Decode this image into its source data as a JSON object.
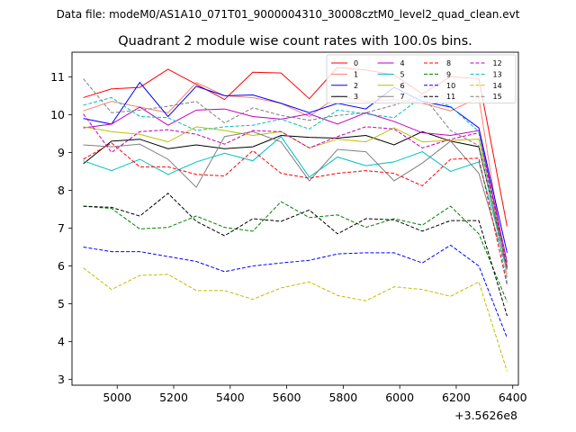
{
  "figure": {
    "suptitle": "Data file: modeM0/AS1A10_071T01_9000004310_30008cztM0_level2_quad_clean.evt",
    "title": "Quadrant 2 module wise count rates with 100.0s bins.",
    "offset_label": "+3.5626e8"
  },
  "chart_data": {
    "type": "line",
    "title": "Quadrant 2 module wise count rates with 100.0s bins.",
    "xlabel": "",
    "ylabel": "",
    "x_offset": 356260000,
    "x": [
      4880,
      4980,
      5080,
      5180,
      5280,
      5380,
      5480,
      5580,
      5680,
      5780,
      5880,
      5980,
      6080,
      6180,
      6280,
      6380
    ],
    "xlim": [
      4840,
      6420
    ],
    "ylim": [
      2.85,
      11.65
    ],
    "xticks": [
      5000,
      5200,
      5400,
      5600,
      5800,
      6000,
      6200,
      6400
    ],
    "yticks": [
      3,
      4,
      5,
      6,
      7,
      8,
      9,
      10,
      11
    ],
    "grid": false,
    "legend_position": "top-right",
    "legend_columns": 4,
    "series": [
      {
        "name": "0",
        "color": "#ff0000",
        "dash": "solid",
        "values": [
          10.45,
          10.68,
          10.72,
          11.2,
          10.8,
          10.4,
          11.12,
          11.1,
          10.42,
          11.25,
          11.18,
          11.05,
          10.55,
          11.0,
          10.95,
          7.05
        ]
      },
      {
        "name": "1",
        "color": "#fa8072",
        "dash": "solid",
        "values": [
          10.1,
          10.35,
          10.2,
          10.05,
          10.85,
          10.5,
          10.45,
          10.3,
          9.95,
          10.5,
          10.35,
          10.4,
          10.3,
          10.1,
          10.45,
          5.7
        ]
      },
      {
        "name": "2",
        "color": "#0000ff",
        "dash": "solid",
        "values": [
          9.9,
          9.75,
          10.85,
          9.95,
          10.75,
          10.5,
          10.52,
          10.3,
          10.05,
          10.3,
          10.15,
          10.72,
          10.35,
          10.2,
          9.65,
          6.35
        ]
      },
      {
        "name": "3",
        "color": "#000000",
        "dash": "solid",
        "values": [
          8.7,
          9.3,
          9.35,
          9.1,
          9.2,
          9.1,
          9.15,
          9.45,
          9.4,
          9.38,
          9.45,
          9.2,
          9.55,
          9.3,
          9.15,
          5.95
        ]
      },
      {
        "name": "4",
        "color": "#bf00bf",
        "dash": "solid",
        "values": [
          9.65,
          9.75,
          10.2,
          9.72,
          10.12,
          10.15,
          9.95,
          9.88,
          10.02,
          9.75,
          10.05,
          9.82,
          9.52,
          9.45,
          9.58,
          6.1
        ]
      },
      {
        "name": "5",
        "color": "#00bfbf",
        "dash": "solid",
        "values": [
          8.78,
          8.52,
          8.82,
          8.42,
          8.75,
          8.98,
          8.78,
          9.42,
          8.35,
          8.88,
          8.65,
          8.75,
          9.02,
          8.5,
          8.75,
          6.05
        ]
      },
      {
        "name": "6",
        "color": "#bfbf00",
        "dash": "solid",
        "values": [
          9.68,
          9.55,
          9.48,
          9.28,
          9.68,
          9.58,
          9.45,
          9.55,
          9.12,
          9.35,
          9.28,
          9.65,
          9.28,
          9.32,
          9.35,
          6.0
        ]
      },
      {
        "name": "7",
        "color": "#808080",
        "dash": "solid",
        "values": [
          9.2,
          9.15,
          9.22,
          8.82,
          8.08,
          9.42,
          9.55,
          9.28,
          8.25,
          9.08,
          9.02,
          8.25,
          8.72,
          9.3,
          8.45,
          5.9
        ]
      },
      {
        "name": "8",
        "color": "#ff0000",
        "dash": "dashed",
        "values": [
          8.82,
          9.25,
          8.62,
          8.62,
          8.42,
          8.38,
          9.05,
          8.45,
          8.32,
          8.45,
          8.52,
          8.45,
          8.12,
          8.82,
          8.85,
          5.5
        ]
      },
      {
        "name": "9",
        "color": "#008000",
        "dash": "dashed",
        "values": [
          7.58,
          7.52,
          6.98,
          7.02,
          7.32,
          7.02,
          6.92,
          7.7,
          7.28,
          7.35,
          7.02,
          7.25,
          7.08,
          7.58,
          6.85,
          5.05
        ]
      },
      {
        "name": "10",
        "color": "#0000ff",
        "dash": "dashed",
        "values": [
          6.5,
          6.38,
          6.38,
          6.25,
          6.12,
          5.85,
          6.0,
          6.08,
          6.15,
          6.32,
          6.35,
          6.35,
          6.08,
          6.55,
          6.0,
          4.1
        ]
      },
      {
        "name": "11",
        "color": "#000000",
        "dash": "dashed",
        "values": [
          7.58,
          7.55,
          7.32,
          7.92,
          7.18,
          6.8,
          7.25,
          7.18,
          7.48,
          6.85,
          7.25,
          7.22,
          6.92,
          7.2,
          7.2,
          4.68
        ]
      },
      {
        "name": "12",
        "color": "#bf00bf",
        "dash": "dashed",
        "values": [
          10.02,
          9.0,
          9.55,
          9.6,
          9.48,
          9.22,
          9.58,
          9.55,
          9.12,
          9.42,
          9.68,
          9.62,
          9.12,
          9.35,
          9.52,
          5.98
        ]
      },
      {
        "name": "13",
        "color": "#00bfbf",
        "dash": "dashed",
        "values": [
          10.25,
          10.45,
          9.95,
          9.92,
          9.58,
          9.68,
          9.72,
          9.88,
          9.62,
          10.12,
          10.02,
          9.92,
          10.48,
          10.22,
          9.55,
          5.55
        ]
      },
      {
        "name": "14",
        "color": "#bfbf00",
        "dash": "dashed",
        "values": [
          5.95,
          5.38,
          5.75,
          5.78,
          5.35,
          5.35,
          5.12,
          5.42,
          5.58,
          5.22,
          5.08,
          5.45,
          5.38,
          5.2,
          5.58,
          3.22
        ]
      },
      {
        "name": "15",
        "color": "#808080",
        "dash": "dashed",
        "values": [
          10.95,
          10.05,
          10.12,
          10.22,
          10.35,
          9.78,
          10.18,
          9.98,
          9.85,
          9.98,
          10.05,
          10.25,
          10.52,
          9.58,
          9.18,
          5.88
        ]
      }
    ]
  }
}
